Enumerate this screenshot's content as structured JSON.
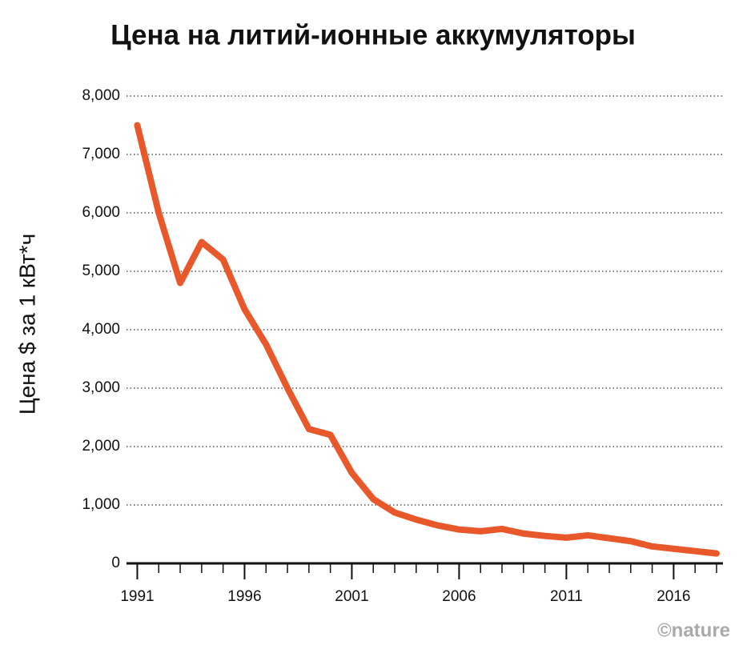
{
  "chart_data": {
    "type": "line",
    "title": "Цена на литий-ионные аккумуляторы",
    "y_label": "Цена $ за 1 кВт*ч",
    "credit": "©nature",
    "x": [
      1991,
      1992,
      1993,
      1994,
      1995,
      1996,
      1997,
      1998,
      1999,
      2000,
      2001,
      2002,
      2003,
      2004,
      2005,
      2006,
      2007,
      2008,
      2009,
      2010,
      2011,
      2012,
      2013,
      2014,
      2015,
      2016,
      2017,
      2018
    ],
    "series": [
      {
        "name": "Цена",
        "color": "#e8582a",
        "values": [
          7500,
          6000,
          4800,
          5500,
          5200,
          4350,
          3750,
          3000,
          2300,
          2200,
          1550,
          1100,
          870,
          750,
          650,
          580,
          550,
          590,
          510,
          470,
          440,
          480,
          430,
          380,
          290,
          250,
          210,
          170
        ]
      }
    ],
    "xlim": [
      1990.05,
      2018.3
    ],
    "xticks": [
      1991,
      1996,
      2001,
      2006,
      2011,
      2016
    ],
    "ylim": [
      0,
      8000
    ],
    "yticks": [
      0,
      {
        "value": 1000,
        "label": "1,000"
      },
      {
        "value": 2000,
        "label": "2,000"
      },
      {
        "value": 3000,
        "label": "3,000"
      },
      {
        "value": 4000,
        "label": "4,000"
      },
      {
        "value": 5000,
        "label": "5,000"
      },
      {
        "value": 6000,
        "label": "6,000"
      },
      {
        "value": 7000,
        "label": "7,000"
      },
      {
        "value": 8000,
        "label": "8,000"
      }
    ],
    "grid": true
  }
}
